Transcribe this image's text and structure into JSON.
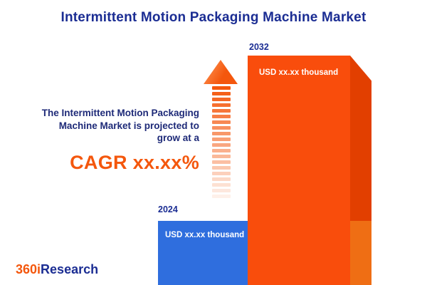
{
  "chart_data": {
    "type": "bar",
    "title": "Intermittent Motion Packaging Machine Market",
    "categories": [
      "2024",
      "2032"
    ],
    "series": [
      {
        "name": "Market size (USD thousand)",
        "values": [
          "xx.xx",
          "xx.xx"
        ]
      }
    ],
    "value_labels": [
      "USD xx.xx thousand",
      "USD xx.xx thousand"
    ],
    "bar_colors": [
      "#2f6ede",
      "#f94d0c"
    ],
    "legend_position": "none",
    "axes_visible": false,
    "grid": false
  },
  "description": {
    "line1": "The Intermittent Motion Packaging",
    "line2": "Machine Market is projected to",
    "line3": "grow at a",
    "cagr": "CAGR xx.xx%"
  },
  "logo": {
    "part1": "360i",
    "part2": "Research"
  },
  "colors": {
    "accent_orange": "#f4570d",
    "brand_navy": "#1b2d93",
    "bar_blue_front": "#2f6ede",
    "bar_blue_side": "#1d54bd",
    "bar_orange_front": "#f94d0c",
    "bar_orange_side": "#e23f00",
    "background": "#ffffff"
  }
}
